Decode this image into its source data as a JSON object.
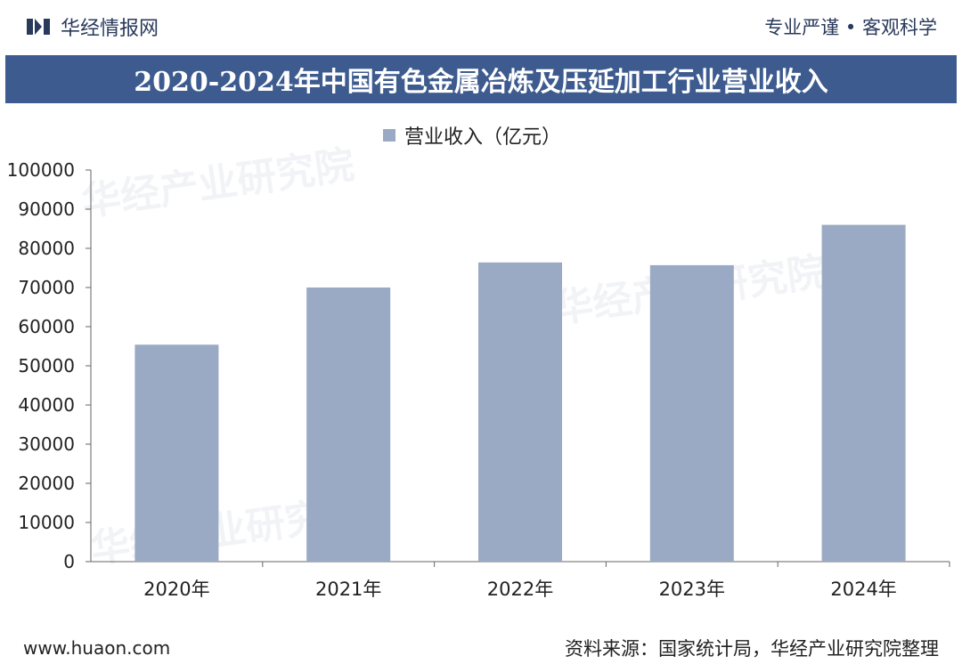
{
  "header": {
    "brand": "华经情报网",
    "tagline": "专业严谨 • 客观科学"
  },
  "colors": {
    "title_bg": "#3d5b8f",
    "bar": "#9aaac4",
    "axis": "#666666"
  },
  "chart_data": {
    "type": "bar",
    "title": "2020-2024年中国有色金属冶炼及压延加工行业营业收入",
    "categories": [
      "2020年",
      "2021年",
      "2022年",
      "2023年",
      "2024年"
    ],
    "series": [
      {
        "name": "营业收入（亿元）",
        "values": [
          55400,
          70000,
          76400,
          75700,
          86000
        ]
      }
    ],
    "yticks": [
      "0",
      "10000",
      "20000",
      "30000",
      "40000",
      "50000",
      "60000",
      "70000",
      "80000",
      "90000",
      "100000"
    ],
    "ylim": [
      0,
      100000
    ],
    "xlabel": "",
    "ylabel": "",
    "legend_position": "top"
  },
  "footer": {
    "website": "www.huaon.com",
    "source": "资料来源：国家统计局，华经产业研究院整理"
  },
  "watermark": {
    "text": "华经产业研究院",
    "url": "www.huaon.com"
  }
}
